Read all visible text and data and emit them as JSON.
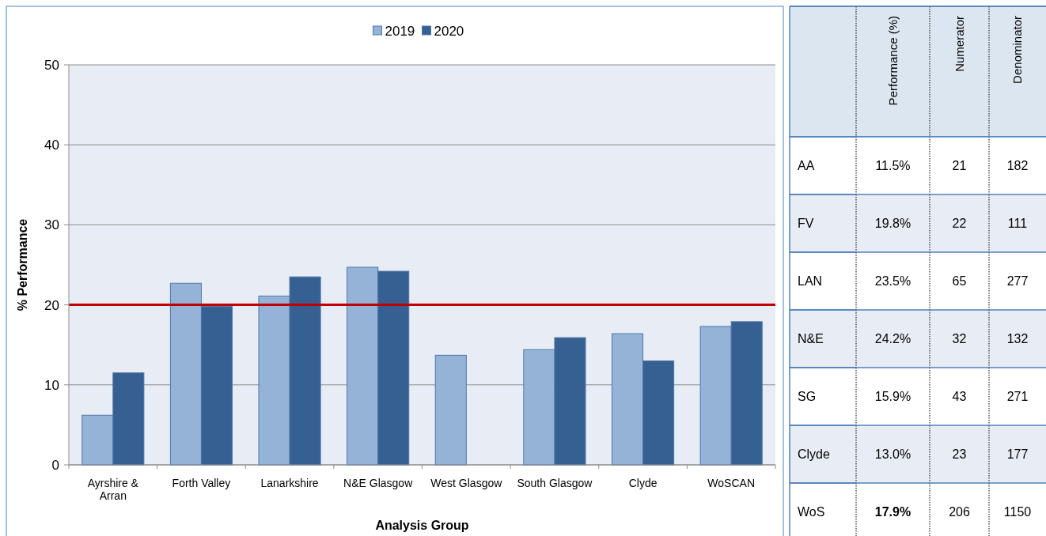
{
  "chart_data": [
    {
      "type": "bar",
      "xlabel": "Analysis Group",
      "ylabel": "% Performance",
      "categories": [
        "Ayrshire & Arran",
        "Forth Valley",
        "Lanarkshire",
        "N&E Glasgow",
        "West Glasgow",
        "South Glasgow",
        "Clyde",
        "WoSCAN"
      ],
      "series": [
        {
          "name": "2019",
          "color": "#95b3d7",
          "values": [
            6.2,
            22.7,
            21.1,
            24.7,
            13.7,
            14.4,
            16.4,
            17.3
          ]
        },
        {
          "name": "2020",
          "color": "#376092",
          "values": [
            11.5,
            19.8,
            23.5,
            24.2,
            null,
            15.9,
            13.0,
            17.9
          ]
        }
      ],
      "ylim": [
        0,
        50
      ],
      "yticks": [
        0,
        10,
        20,
        30,
        40,
        50
      ],
      "grid": "y",
      "legend": "top",
      "ref_lines": [
        {
          "axis": "y",
          "value": 20,
          "color": "#c00000"
        }
      ]
    },
    {
      "type": "heatmap",
      "categories": [
        "Performance (%)",
        "Numerator",
        "Denominator"
      ],
      "y_categories": [
        "AA",
        "FV",
        "LAN",
        "N&E",
        "SG",
        "Clyde",
        "WoS"
      ],
      "cells": [
        [
          11.5,
          21,
          182
        ],
        [
          19.8,
          22,
          111
        ],
        [
          23.5,
          65,
          277
        ],
        [
          24.2,
          32,
          132
        ],
        [
          15.9,
          43,
          271
        ],
        [
          13.0,
          23,
          177
        ],
        [
          17.9,
          206,
          1150
        ]
      ],
      "cell_labels": [
        [
          "11.5%",
          "21",
          "182"
        ],
        [
          "19.8%",
          "22",
          "111"
        ],
        [
          "23.5%",
          "65",
          "277"
        ],
        [
          "24.2%",
          "32",
          "132"
        ],
        [
          "15.9%",
          "43",
          "271"
        ],
        [
          "13.0%",
          "23",
          "177"
        ],
        [
          "17.9%",
          "206",
          "1150"
        ]
      ]
    }
  ]
}
